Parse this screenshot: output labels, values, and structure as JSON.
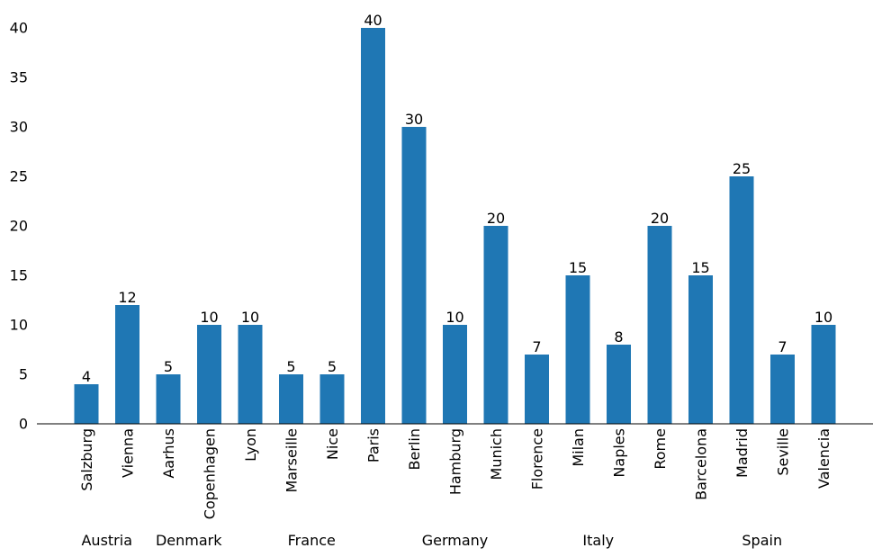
{
  "chart_data": {
    "type": "bar",
    "categories": [
      "Salzburg",
      "Vienna",
      "Aarhus",
      "Copenhagen",
      "Lyon",
      "Marseille",
      "Nice",
      "Paris",
      "Berlin",
      "Hamburg",
      "Munich",
      "Florence",
      "Milan",
      "Naples",
      "Rome",
      "Barcelona",
      "Madrid",
      "Seville",
      "Valencia"
    ],
    "values": [
      4,
      12,
      5,
      10,
      10,
      5,
      5,
      40,
      30,
      10,
      20,
      7,
      15,
      8,
      20,
      15,
      25,
      7,
      10
    ],
    "groups": [
      {
        "name": "Austria",
        "start": 0,
        "end": 1
      },
      {
        "name": "Denmark",
        "start": 2,
        "end": 3
      },
      {
        "name": "France",
        "start": 4,
        "end": 7
      },
      {
        "name": "Germany",
        "start": 8,
        "end": 10
      },
      {
        "name": "Italy",
        "start": 11,
        "end": 14
      },
      {
        "name": "Spain",
        "start": 15,
        "end": 18
      }
    ],
    "yticks": [
      0,
      5,
      10,
      15,
      20,
      25,
      30,
      35,
      40
    ],
    "ylim": [
      0,
      40
    ],
    "bar_color": "#1f77b4",
    "data_labels": true,
    "grid": false,
    "title": "",
    "xlabel": "",
    "ylabel": ""
  }
}
